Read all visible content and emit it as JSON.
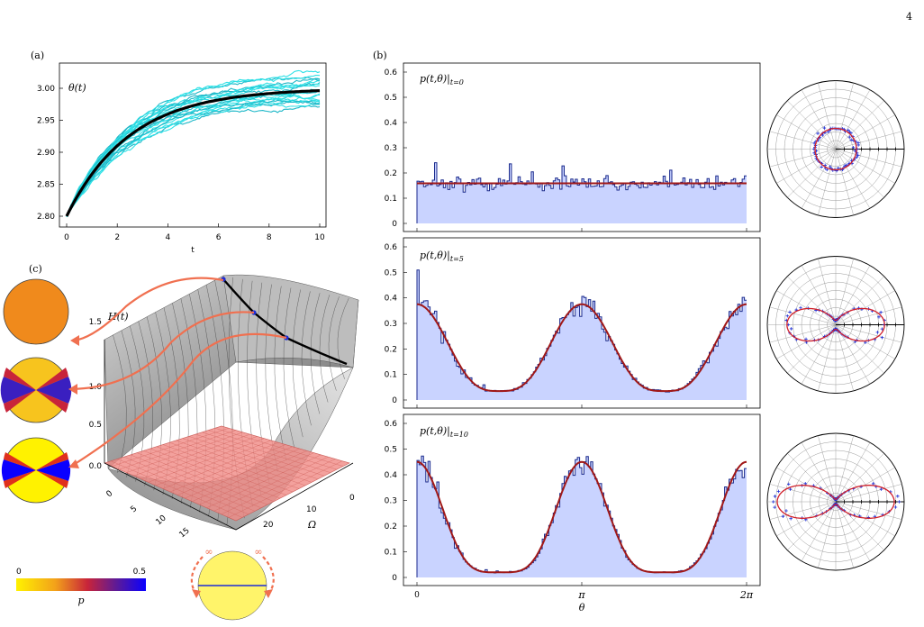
{
  "page_number": "4",
  "panel_a": {
    "label": "(a)",
    "annotation": "θ(t)",
    "xlabel": "t",
    "x_ticks": [
      "0",
      "2",
      "4",
      "6",
      "8",
      "10"
    ],
    "y_ticks": [
      "2.80",
      "2.85",
      "2.90",
      "2.95",
      "3.00"
    ],
    "colors": {
      "trajectories": "#2fe0e6",
      "mean": "#000000"
    }
  },
  "panel_b": {
    "label": "(b)",
    "xlabel": "θ",
    "x_ticks": [
      "0",
      "π",
      "2π"
    ],
    "y_ticks": [
      "0",
      "0.1",
      "0.2",
      "0.3",
      "0.4",
      "0.5",
      "0.6"
    ],
    "subplots": [
      {
        "annotation": "p(t,θ)|t=0",
        "sub": "t=0",
        "amplitude": 0.0,
        "level": 0.159
      },
      {
        "annotation": "p(t,θ)|t=5",
        "sub": "t=5",
        "amplitude": 0.34,
        "level": 0.035
      },
      {
        "annotation": "p(t,θ)|t=10",
        "sub": "t=10",
        "amplitude": 0.43,
        "level": 0.02
      }
    ],
    "colors": {
      "hist_fill": "#c9d3ff",
      "hist_line": "#1a2a8c",
      "fit": "#a01818"
    }
  },
  "panel_c": {
    "label": "(c)",
    "zlabel": "H(t)",
    "z_ticks": [
      "1.5",
      "1.0",
      "0.5",
      "0.0"
    ],
    "t_ticks": [
      "0",
      "5",
      "10",
      "15"
    ],
    "omega_label": "Ω",
    "omega_ticks": [
      "20",
      "10",
      "0"
    ],
    "colorbar": {
      "label": "p",
      "min": "0",
      "max": "0.5"
    },
    "infinity_left": "∞",
    "infinity_right": "∞",
    "colors": {
      "surface": "#8f8f8f",
      "plane": "#f08a85",
      "arrow": "#f07050",
      "curve": "#000000",
      "marker": "#1b2bd6",
      "disk_uniform": "#f08a1c"
    }
  }
}
